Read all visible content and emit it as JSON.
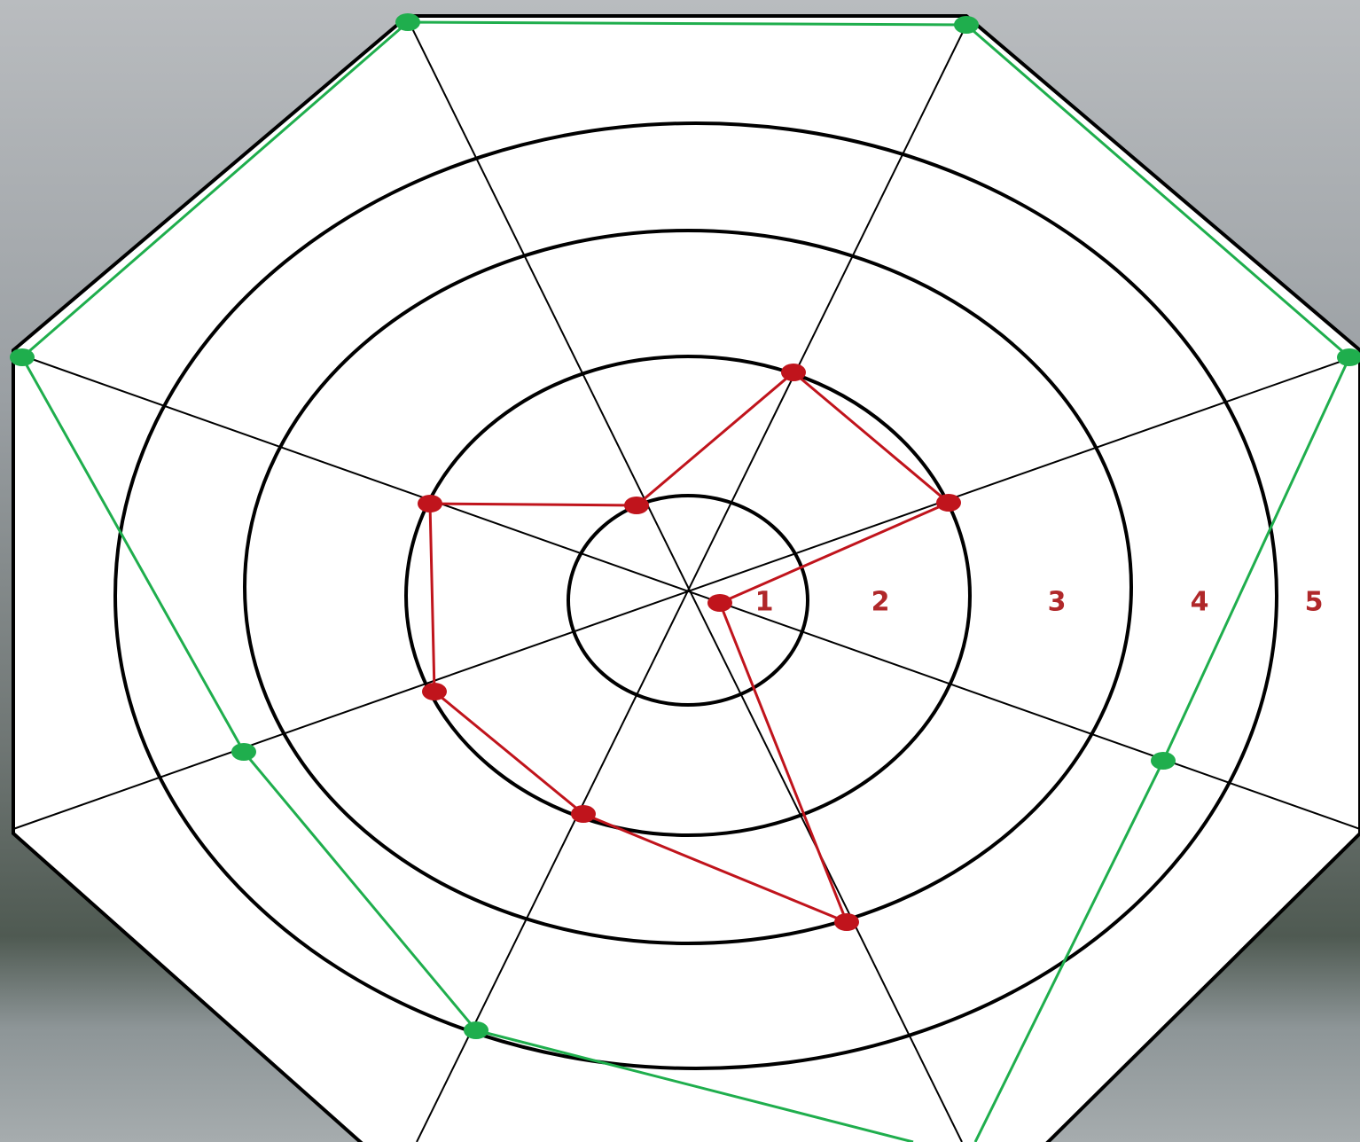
{
  "ring_labels": [
    "1",
    "2",
    "3",
    "4",
    "5"
  ]
}
